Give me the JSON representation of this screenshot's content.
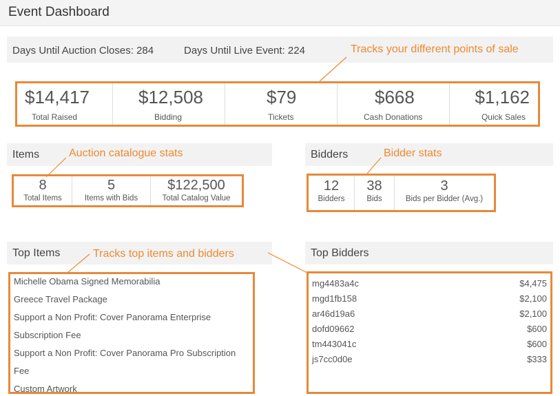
{
  "page": {
    "title": "Event Dashboard"
  },
  "countdown": {
    "auction_closes": "Days Until Auction Closes: 284",
    "live_event": "Days Until Live Event: 224"
  },
  "totals": [
    {
      "value": "$14,417",
      "label": "Total Raised"
    },
    {
      "value": "$12,508",
      "label": "Bidding"
    },
    {
      "value": "$79",
      "label": "Tickets"
    },
    {
      "value": "$668",
      "label": "Cash Donations"
    },
    {
      "value": "$1,162",
      "label": "Quick Sales"
    }
  ],
  "items": {
    "heading": "Items",
    "stats": [
      {
        "value": "8",
        "label": "Total Items"
      },
      {
        "value": "5",
        "label": "Items with Bids"
      },
      {
        "value": "$122,500",
        "label": "Total Catalog Value"
      }
    ]
  },
  "bidders": {
    "heading": "Bidders",
    "stats": [
      {
        "value": "12",
        "label": "Bidders"
      },
      {
        "value": "38",
        "label": "Bids"
      },
      {
        "value": "3",
        "label": "Bids per Bidder (Avg.)"
      }
    ]
  },
  "top_items": {
    "heading": "Top Items",
    "lines": [
      "Michelle Obama Signed Memorabilia",
      "Greece Travel Package",
      "Support a Non Profit: Cover Panorama Enterprise",
      "Subscription Fee",
      "Support a Non Profit: Cover Panorama Pro Subscription",
      "Fee",
      "Custom Artwork"
    ]
  },
  "top_bidders": {
    "heading": "Top Bidders",
    "rows": [
      {
        "id": "mg4483a4c",
        "amount": "$4,475"
      },
      {
        "id": "mgd1fb158",
        "amount": "$2,100"
      },
      {
        "id": "ar46d19a6",
        "amount": "$2,100"
      },
      {
        "id": "dofd09662",
        "amount": "$600"
      },
      {
        "id": "tm443041c",
        "amount": "$600"
      },
      {
        "id": "js7cc0d0e",
        "amount": "$333"
      }
    ]
  },
  "annotations": {
    "points_of_sale": "Tracks your different points of sale",
    "catalogue": "Auction catalogue stats",
    "bidder": "Bidder stats",
    "top": "Tracks top items and bidders"
  },
  "colors": {
    "accent": "#ee8a30",
    "band": "#f2f2f2"
  }
}
